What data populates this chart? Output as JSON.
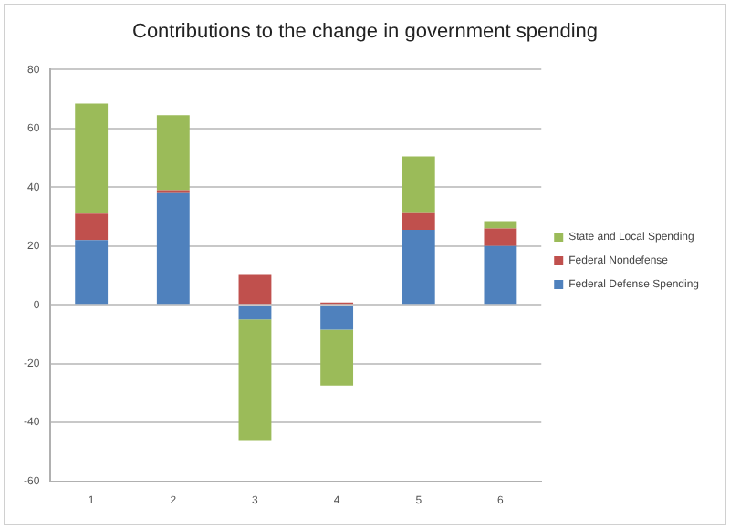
{
  "chart_data": {
    "type": "bar",
    "title": "Contributions to the change in government spending",
    "categories": [
      "1",
      "2",
      "3",
      "4",
      "5",
      "6"
    ],
    "stacked": true,
    "series": [
      {
        "name": "Federal Defense Spending",
        "color": "#4f81bd",
        "values": [
          22,
          38,
          -5,
          -8.5,
          25.5,
          20
        ]
      },
      {
        "name": "Federal Nondefense",
        "color": "#c0504d",
        "values": [
          9,
          1,
          10.5,
          0.8,
          6,
          6
        ]
      },
      {
        "name": "State and Local Spending",
        "color": "#9bbb59",
        "values": [
          37.5,
          25.5,
          -41,
          -19,
          19,
          2.5
        ]
      }
    ],
    "ylim": [
      -60,
      80
    ],
    "yticks": [
      -60,
      -40,
      -20,
      0,
      20,
      40,
      60,
      80
    ],
    "grid": "y",
    "legend": "right"
  }
}
